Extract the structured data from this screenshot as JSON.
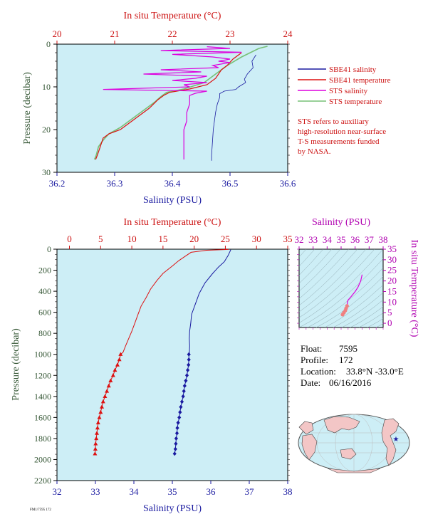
{
  "colors": {
    "panel_bg": "#cdeef6",
    "salinity": "#1a1aa0",
    "temperature": "#dd1111",
    "sts_salinity": "#dd00dd",
    "sts_temperature": "#77c077",
    "axis_green": "#335533",
    "magenta": "#b000b0"
  },
  "legend": {
    "items": [
      {
        "label": "SBE41 salinity",
        "color": "#1a1aa0"
      },
      {
        "label": "SBE41 temperature",
        "color": "#dd1111"
      },
      {
        "label": "STS salinity",
        "color": "#dd00dd"
      },
      {
        "label": "STS temperature",
        "color": "#77c077"
      }
    ],
    "note": [
      "STS refers to auxiliary",
      "high-resolution near-surface",
      "T-S measurements funded",
      "by NASA."
    ]
  },
  "info": {
    "float_label": "Float:",
    "float": "7595",
    "profile_label": "Profile:",
    "profile": "172",
    "location_label": "Location:",
    "location": "33.8°N  -33.0°E",
    "date_label": "Date:",
    "date": "06/16/2016"
  },
  "footer_tag": "FM1/7595 172",
  "chart_data": [
    {
      "id": "near-surface",
      "type": "line",
      "title": "",
      "top_axis": {
        "label": "In situ Temperature (°C)",
        "range": [
          20,
          24
        ],
        "ticks": [
          "20",
          "21",
          "22",
          "23",
          "24"
        ]
      },
      "bottom_axis": {
        "label": "Salinity (PSU)",
        "range": [
          36.2,
          36.6
        ],
        "ticks": [
          "36.2",
          "36.3",
          "36.4",
          "36.5",
          "36.6"
        ]
      },
      "left_axis": {
        "label": "Pressure (decibar)",
        "range": [
          0,
          30
        ],
        "inverted": true,
        "ticks": [
          "0",
          "10",
          "20",
          "30"
        ]
      },
      "series": [
        {
          "name": "SBE41 salinity",
          "axis": "salinity",
          "points": [
            [
              36.545,
              2.5
            ],
            [
              36.538,
              4
            ],
            [
              36.54,
              5.5
            ],
            [
              36.53,
              7
            ],
            [
              36.525,
              8.2
            ],
            [
              36.527,
              9
            ],
            [
              36.515,
              10
            ],
            [
              36.51,
              10.6
            ],
            [
              36.49,
              11
            ],
            [
              36.482,
              11.6
            ],
            [
              36.482,
              12.5
            ],
            [
              36.478,
              14
            ],
            [
              36.475,
              16
            ],
            [
              36.473,
              18
            ],
            [
              36.471,
              20
            ],
            [
              36.47,
              22
            ],
            [
              36.469,
              24
            ],
            [
              36.468,
              26
            ],
            [
              36.468,
              27.3
            ]
          ]
        },
        {
          "name": "SBE41 temperature",
          "axis": "temperature",
          "points": [
            [
              23.2,
              2
            ],
            [
              23.05,
              3.5
            ],
            [
              22.95,
              5
            ],
            [
              22.85,
              6
            ],
            [
              22.75,
              8
            ],
            [
              22.6,
              9.5
            ],
            [
              22.3,
              10.5
            ],
            [
              21.95,
              11.3
            ],
            [
              21.85,
              12
            ],
            [
              21.75,
              13
            ],
            [
              21.6,
              15
            ],
            [
              21.4,
              17
            ],
            [
              21.2,
              19
            ],
            [
              21.1,
              20
            ],
            [
              20.9,
              21
            ],
            [
              20.8,
              22
            ],
            [
              20.75,
              24
            ],
            [
              20.7,
              26
            ],
            [
              20.67,
              27
            ]
          ]
        },
        {
          "name": "STS salinity",
          "axis": "salinity",
          "points": [
            [
              36.46,
              0.6
            ],
            [
              36.5,
              1
            ],
            [
              36.38,
              1.5
            ],
            [
              36.52,
              1.9
            ],
            [
              36.4,
              2.4
            ],
            [
              36.47,
              3
            ],
            [
              36.5,
              3.5
            ],
            [
              36.48,
              4
            ],
            [
              36.5,
              4.3
            ],
            [
              36.47,
              5
            ],
            [
              36.48,
              5.5
            ],
            [
              36.38,
              6
            ],
            [
              36.45,
              6.5
            ],
            [
              36.35,
              7
            ],
            [
              36.46,
              7.5
            ],
            [
              36.44,
              8
            ],
            [
              36.4,
              8.5
            ],
            [
              36.46,
              9
            ],
            [
              36.42,
              9.5
            ],
            [
              36.43,
              10
            ],
            [
              36.28,
              10.6
            ],
            [
              36.46,
              11
            ],
            [
              36.44,
              11.5
            ],
            [
              36.43,
              12
            ],
            [
              36.43,
              14
            ],
            [
              36.425,
              16
            ],
            [
              36.425,
              18
            ],
            [
              36.42,
              20
            ],
            [
              36.42,
              22
            ],
            [
              36.42,
              24
            ],
            [
              36.42,
              26
            ],
            [
              36.42,
              27
            ]
          ]
        },
        {
          "name": "STS temperature",
          "axis": "temperature",
          "points": [
            [
              23.65,
              0.5
            ],
            [
              23.5,
              1
            ],
            [
              23.35,
              2
            ],
            [
              23.2,
              3
            ],
            [
              23.1,
              3.8
            ],
            [
              22.95,
              5
            ],
            [
              22.85,
              6
            ],
            [
              22.7,
              7.5
            ],
            [
              22.55,
              9
            ],
            [
              22.2,
              10.5
            ],
            [
              21.9,
              11.3
            ],
            [
              21.8,
              12.3
            ],
            [
              21.7,
              13.5
            ],
            [
              21.55,
              15
            ],
            [
              21.3,
              17.5
            ],
            [
              21.1,
              19.5
            ],
            [
              20.9,
              21
            ],
            [
              20.8,
              22.5
            ],
            [
              20.72,
              24
            ],
            [
              20.68,
              26
            ],
            [
              20.65,
              27
            ]
          ]
        }
      ]
    },
    {
      "id": "full-profile",
      "type": "line",
      "title": "",
      "top_axis": {
        "label": "In situ Temperature (°C)",
        "range": [
          -2,
          35
        ],
        "ticks": [
          "0",
          "5",
          "10",
          "15",
          "20",
          "25",
          "30",
          "35"
        ]
      },
      "bottom_axis": {
        "label": "Salinity (PSU)",
        "range": [
          32,
          38
        ],
        "ticks": [
          "32",
          "33",
          "34",
          "35",
          "36",
          "37",
          "38"
        ]
      },
      "left_axis": {
        "label": "Pressure (decibar)",
        "range": [
          0,
          2200
        ],
        "inverted": true,
        "ticks": [
          "0",
          "200",
          "400",
          "600",
          "800",
          "1000",
          "1200",
          "1400",
          "1600",
          "1800",
          "2000",
          "2200"
        ]
      },
      "series": [
        {
          "name": "SBE41 salinity",
          "axis": "salinity",
          "points": [
            [
              36.52,
              5
            ],
            [
              36.45,
              60
            ],
            [
              36.35,
              120
            ],
            [
              36.2,
              170
            ],
            [
              36.05,
              230
            ],
            [
              35.85,
              320
            ],
            [
              35.7,
              420
            ],
            [
              35.6,
              520
            ],
            [
              35.5,
              620
            ],
            [
              35.48,
              700
            ],
            [
              35.45,
              780
            ],
            [
              35.44,
              850
            ],
            [
              35.45,
              920
            ],
            [
              35.44,
              990
            ],
            [
              35.43,
              1000
            ],
            [
              35.43,
              1050
            ],
            [
              35.42,
              1100
            ],
            [
              35.4,
              1150
            ],
            [
              35.38,
              1200
            ],
            [
              35.35,
              1250
            ],
            [
              35.32,
              1300
            ],
            [
              35.3,
              1350
            ],
            [
              35.28,
              1400
            ],
            [
              35.25,
              1450
            ],
            [
              35.22,
              1500
            ],
            [
              35.2,
              1550
            ],
            [
              35.18,
              1600
            ],
            [
              35.15,
              1650
            ],
            [
              35.13,
              1700
            ],
            [
              35.12,
              1750
            ],
            [
              35.1,
              1800
            ],
            [
              35.09,
              1850
            ],
            [
              35.08,
              1900
            ],
            [
              35.06,
              1945
            ]
          ]
        },
        {
          "name": "SBE41 temperature",
          "axis": "temperature",
          "points": [
            [
              25.5,
              3
            ],
            [
              22,
              10
            ],
            [
              19.5,
              30
            ],
            [
              18.5,
              70
            ],
            [
              17.5,
              110
            ],
            [
              16.5,
              160
            ],
            [
              15,
              230
            ],
            [
              14,
              300
            ],
            [
              13,
              380
            ],
            [
              12.3,
              460
            ],
            [
              11.5,
              540
            ],
            [
              11,
              620
            ],
            [
              10.5,
              700
            ],
            [
              10,
              780
            ],
            [
              9.5,
              850
            ],
            [
              9,
              920
            ],
            [
              8.6,
              980
            ],
            [
              8.2,
              1000
            ],
            [
              8,
              1050
            ],
            [
              7.7,
              1100
            ],
            [
              7.3,
              1150
            ],
            [
              7,
              1200
            ],
            [
              6.6,
              1250
            ],
            [
              6.3,
              1300
            ],
            [
              6,
              1350
            ],
            [
              5.7,
              1400
            ],
            [
              5.4,
              1450
            ],
            [
              5.2,
              1500
            ],
            [
              5,
              1550
            ],
            [
              4.8,
              1600
            ],
            [
              4.6,
              1650
            ],
            [
              4.5,
              1700
            ],
            [
              4.4,
              1750
            ],
            [
              4.3,
              1800
            ],
            [
              4.2,
              1850
            ],
            [
              4.15,
              1900
            ],
            [
              4.1,
              1945
            ]
          ]
        }
      ],
      "markers": {
        "from_pressure": 1000
      }
    },
    {
      "id": "ts-diagram",
      "type": "scatter",
      "title": "",
      "top_axis": {
        "label": "Salinity (PSU)",
        "range": [
          32,
          38
        ],
        "ticks": [
          "32",
          "33",
          "34",
          "35",
          "36",
          "37",
          "38"
        ]
      },
      "right_axis": {
        "label": "In situ Temperature (°C)",
        "range": [
          -2,
          35
        ],
        "ticks": [
          "0",
          "5",
          "10",
          "15",
          "20",
          "25",
          "30",
          "35"
        ]
      },
      "series": [
        {
          "name": "SBE41",
          "points": [
            [
              35.1,
              4.1
            ],
            [
              35.2,
              5
            ],
            [
              35.3,
              6
            ],
            [
              35.35,
              7
            ],
            [
              35.42,
              8.2
            ],
            [
              35.45,
              10
            ],
            [
              35.5,
              11
            ],
            [
              35.7,
              12.5
            ],
            [
              36.0,
              15
            ],
            [
              36.2,
              17
            ],
            [
              36.4,
              20
            ],
            [
              36.5,
              23
            ]
          ]
        }
      ]
    }
  ]
}
